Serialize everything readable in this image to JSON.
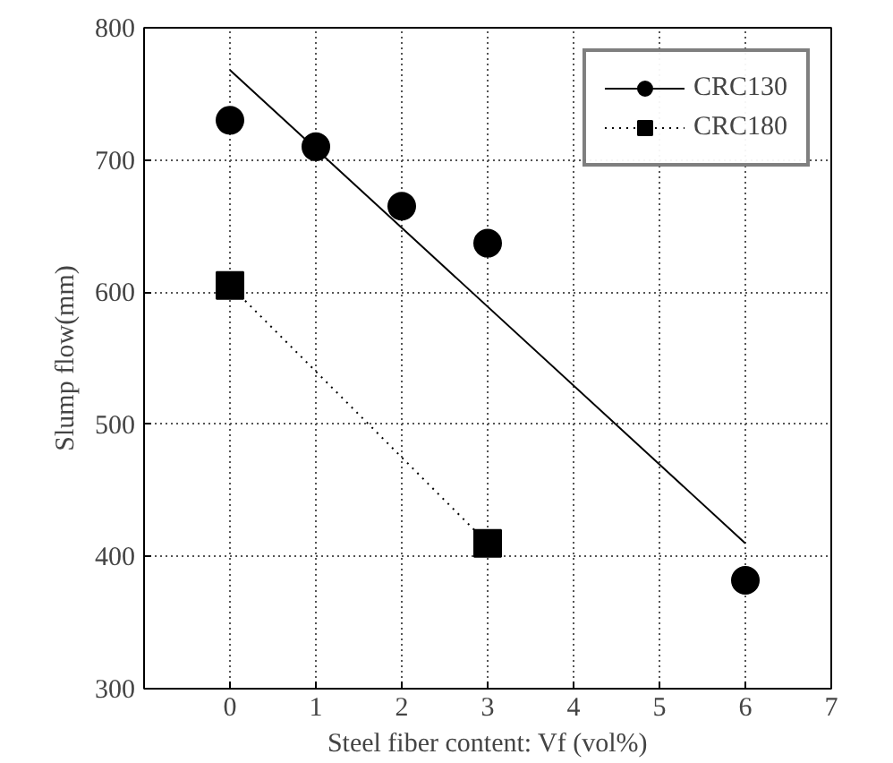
{
  "chart_data": {
    "type": "scatter",
    "xlabel": "Steel fiber content: Vf (vol%)",
    "ylabel": "Slump flow(mm)",
    "xlim": [
      -1,
      7
    ],
    "xticks": [
      0,
      1,
      2,
      3,
      4,
      5,
      6,
      7
    ],
    "ylim": [
      300,
      800
    ],
    "yticks": [
      300,
      400,
      500,
      600,
      700,
      800
    ],
    "grid": true,
    "legend": "top right",
    "series": [
      {
        "name": "CRC130",
        "marker": "circle",
        "color": "#000000",
        "x": [
          0,
          1,
          2,
          3,
          6
        ],
        "values": [
          730,
          710,
          665,
          637,
          382
        ]
      },
      {
        "type": "line",
        "line_style": "solid",
        "marker": "none",
        "color": "#000000",
        "x": [
          0,
          6
        ],
        "values": [
          768,
          410
        ]
      },
      {
        "name": "CRC180",
        "type": "line",
        "line_style": "dotted",
        "marker": "square",
        "color": "#000000",
        "x": [
          0,
          3
        ],
        "values": [
          605,
          410
        ]
      }
    ]
  }
}
